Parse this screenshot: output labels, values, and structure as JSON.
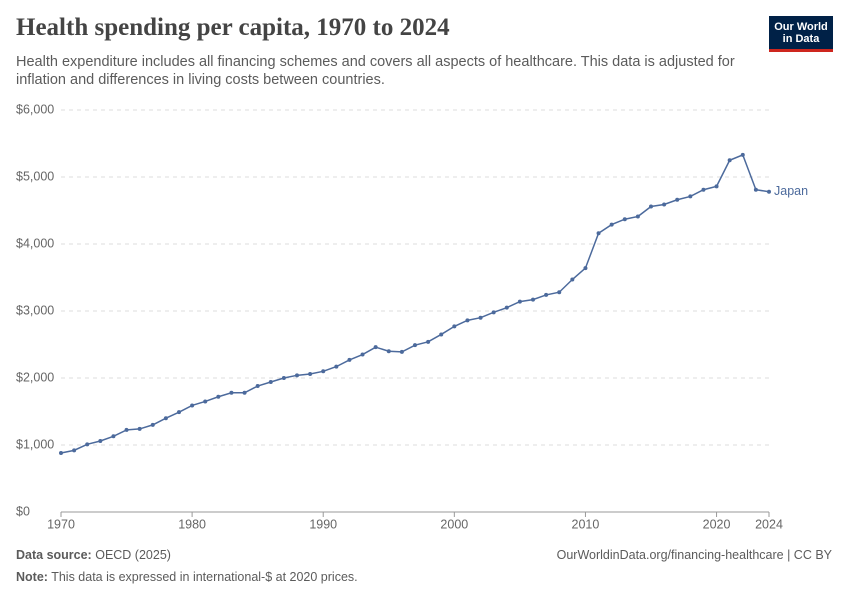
{
  "chart_data": {
    "type": "line",
    "title": "Health spending per capita, 1970 to 2024",
    "subtitle": "Health expenditure includes all financing schemes and covers all aspects of healthcare. This data is adjusted for inflation and differences in living costs between countries.",
    "x": [
      1970,
      1971,
      1972,
      1973,
      1974,
      1975,
      1976,
      1977,
      1978,
      1979,
      1980,
      1981,
      1982,
      1983,
      1984,
      1985,
      1986,
      1987,
      1988,
      1989,
      1990,
      1991,
      1992,
      1993,
      1994,
      1995,
      1996,
      1997,
      1998,
      1999,
      2000,
      2001,
      2002,
      2003,
      2004,
      2005,
      2006,
      2007,
      2008,
      2009,
      2010,
      2011,
      2012,
      2013,
      2014,
      2015,
      2016,
      2017,
      2018,
      2019,
      2020,
      2021,
      2022,
      2023,
      2024
    ],
    "series": [
      {
        "name": "Japan",
        "color": "#4c6a9c",
        "values": [
          880,
          920,
          1010,
          1060,
          1130,
          1225,
          1240,
          1300,
          1400,
          1490,
          1590,
          1650,
          1720,
          1780,
          1780,
          1880,
          1940,
          2000,
          2040,
          2060,
          2100,
          2170,
          2270,
          2350,
          2460,
          2400,
          2390,
          2490,
          2540,
          2650,
          2770,
          2860,
          2900,
          2980,
          3050,
          3140,
          3170,
          3240,
          3280,
          3470,
          3640,
          4160,
          4290,
          4370,
          4410,
          4560,
          4590,
          4660,
          4710,
          4810,
          4860,
          5250,
          5330,
          4810,
          4780
        ]
      }
    ],
    "xlim": [
      1970,
      2024
    ],
    "xticks": [
      1970,
      1980,
      1990,
      2000,
      2010,
      2020,
      2024
    ],
    "ylim": [
      0,
      6000
    ],
    "yticks": [
      {
        "value": 0,
        "label": "$0"
      },
      {
        "value": 1000,
        "label": "$1,000"
      },
      {
        "value": 2000,
        "label": "$2,000"
      },
      {
        "value": 3000,
        "label": "$3,000"
      },
      {
        "value": 4000,
        "label": "$4,000"
      },
      {
        "value": 5000,
        "label": "$5,000"
      },
      {
        "value": 6000,
        "label": "$6,000"
      }
    ],
    "grid": true
  },
  "logo": [
    "Our World",
    "in Data"
  ],
  "footer": {
    "source_label": "Data source:",
    "source": "OECD (2025)",
    "url": "OurWorldinData.org/financing-healthcare | CC BY",
    "note_label": "Note:",
    "note": "This data is expressed in international-$ at 2020 prices."
  }
}
